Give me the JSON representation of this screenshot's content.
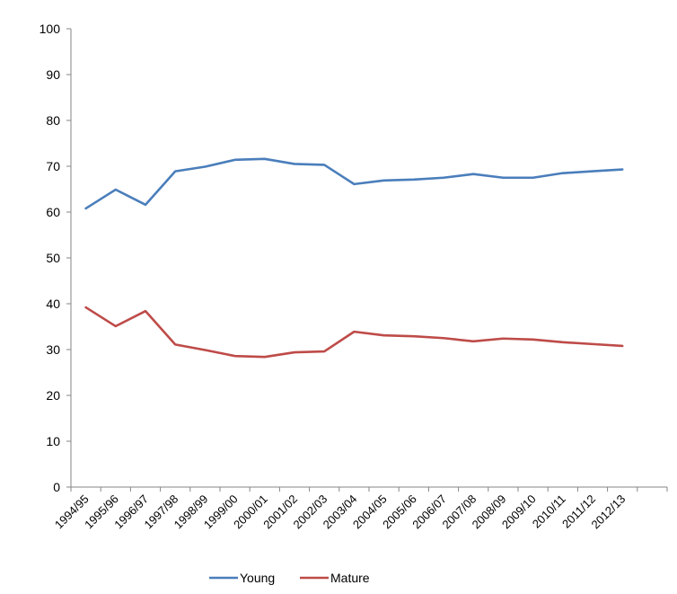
{
  "chart_data": {
    "type": "line",
    "categories": [
      "1994/95",
      "1995/96",
      "1996/97",
      "1997/98",
      "1998/99",
      "1999/00",
      "2000/01",
      "2001/02",
      "2002/03",
      "2003/04",
      "2004/05",
      "2005/06",
      "2006/07",
      "2007/08",
      "2008/09",
      "2009/10",
      "2010/11",
      "2011/12",
      "2012/13"
    ],
    "series": [
      {
        "name": "Young",
        "color": "#4a7ebb",
        "values": [
          60.8,
          64.9,
          61.6,
          68.9,
          69.9,
          71.4,
          71.6,
          70.5,
          70.3,
          66.1,
          66.9,
          67.1,
          67.5,
          68.3,
          67.5,
          67.5,
          68.5,
          68.9,
          69.3
        ]
      },
      {
        "name": "Mature",
        "color": "#be4b48",
        "values": [
          39.2,
          35.1,
          38.4,
          31.1,
          29.9,
          28.6,
          28.4,
          29.4,
          29.6,
          33.9,
          33.1,
          32.9,
          32.5,
          31.8,
          32.4,
          32.2,
          31.6,
          31.2,
          30.8
        ]
      }
    ],
    "ylim": [
      0,
      100
    ],
    "yticks": [
      "0",
      "10",
      "20",
      "30",
      "40",
      "50",
      "60",
      "70",
      "80",
      "90",
      "100"
    ],
    "grid": false,
    "legend_position": "bottom"
  }
}
